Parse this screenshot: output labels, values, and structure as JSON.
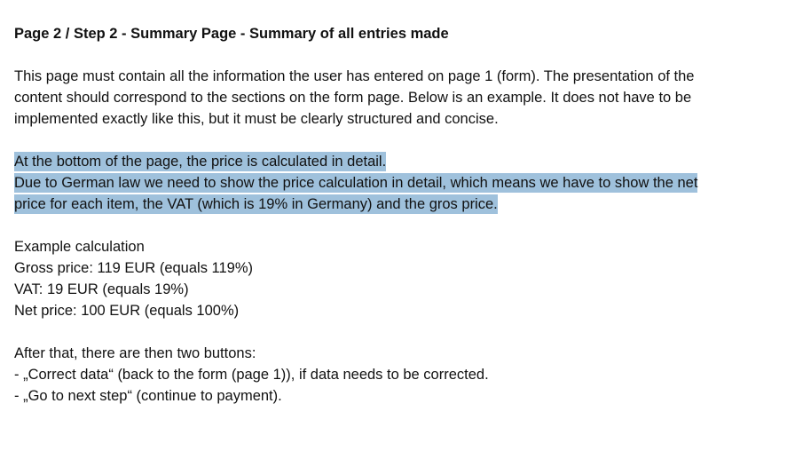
{
  "document": {
    "heading": "Page 2 / Step 2 - Summary Page - Summary of all entries made",
    "intro_lines": [
      "This page must contain all the information the user has entered on page 1 (form). The presentation of the",
      "content should correspond to the sections on the form page. Below is an example. It does not have to be",
      "implemented exactly like this, but it must be clearly structured and concise."
    ],
    "highlight_lines": [
      "At the bottom of the page, the price is calculated in detail.",
      "Due to German law we need to show the price calculation in detail, which means we have to show the net",
      "price for each item, the VAT (which is 19% in Germany) and the gros price."
    ],
    "example_lines": [
      "Example calculation",
      "Gross price: 119 EUR (equals 119%)",
      "VAT: 19 EUR (equals 19%)",
      "Net price: 100 EUR (equals 100%)"
    ],
    "buttons_lines": [
      "After that, there are then two buttons:",
      "- „Correct data“ (back to the form (page 1)), if data needs to be corrected.",
      "- „Go to next step“ (continue to payment)."
    ],
    "highlight_color": "#9fc1dc"
  }
}
